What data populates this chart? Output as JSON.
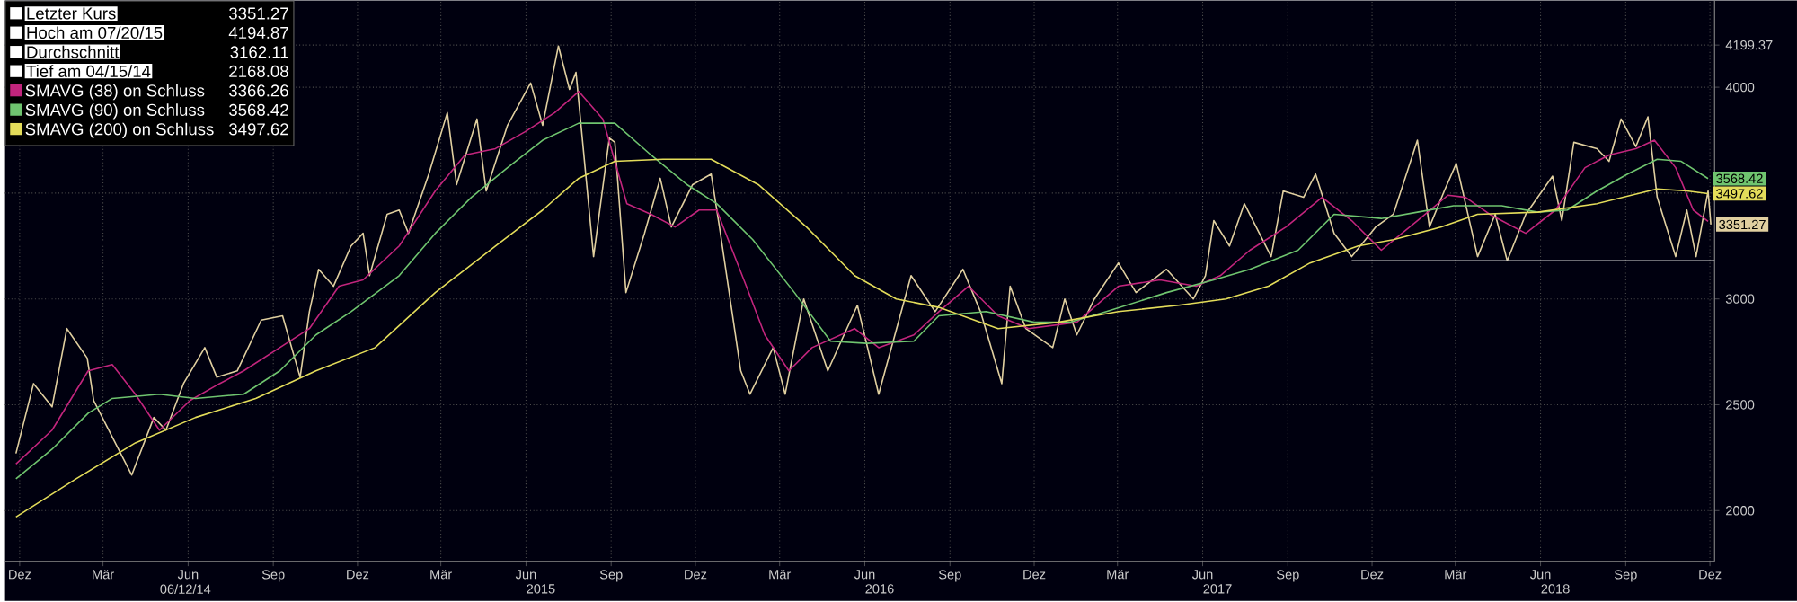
{
  "chart_data": {
    "type": "line",
    "xlim": [
      "2013-11-29",
      "2018-12-20"
    ],
    "ylim": [
      1760,
      4410
    ],
    "xticks": [
      {
        "value": "2013-12-15",
        "label": "Dez"
      },
      {
        "value": "2014-03-15",
        "label": "Mär"
      },
      {
        "value": "2014-06-15",
        "label": "Jun"
      },
      {
        "value": "2014-09-15",
        "label": "Sep"
      },
      {
        "value": "2014-12-15",
        "label": "Dez"
      },
      {
        "value": "2015-03-15",
        "label": "Mär"
      },
      {
        "value": "2015-06-15",
        "label": "Jun"
      },
      {
        "value": "2015-09-15",
        "label": "Sep"
      },
      {
        "value": "2015-12-15",
        "label": "Dez"
      },
      {
        "value": "2016-03-15",
        "label": "Mär"
      },
      {
        "value": "2016-06-15",
        "label": "Jun"
      },
      {
        "value": "2016-09-15",
        "label": "Sep"
      },
      {
        "value": "2016-12-15",
        "label": "Dez"
      },
      {
        "value": "2017-03-15",
        "label": "Mär"
      },
      {
        "value": "2017-06-15",
        "label": "Jun"
      },
      {
        "value": "2017-09-15",
        "label": "Sep"
      },
      {
        "value": "2017-12-15",
        "label": "Dez"
      },
      {
        "value": "2018-03-15",
        "label": "Mär"
      },
      {
        "value": "2018-06-15",
        "label": "Jun"
      },
      {
        "value": "2018-09-15",
        "label": "Sep"
      },
      {
        "value": "2018-12-15",
        "label": "Dez"
      }
    ],
    "x2lim": [
      "2013-11-29",
      "2018-12-20"
    ],
    "x2ticks": [
      {
        "value": "2014-06-12",
        "label": "06/12/14"
      },
      {
        "value": "2015-07-01",
        "label": "2015"
      },
      {
        "value": "2016-07-01",
        "label": "2016"
      },
      {
        "value": "2017-07-01",
        "label": "2017"
      },
      {
        "value": "2018-07-01",
        "label": "2018"
      }
    ],
    "yticks": [
      2000,
      2500,
      3000,
      {
        "value": 3500,
        "label": null
      },
      4000,
      4199.37
    ],
    "grid": true,
    "legend": "top left",
    "marker": "none",
    "line_style": "solid",
    "annotations": [
      "Letzter Kurs",
      "3351.27",
      "Hoch am 07/20/15",
      "4194.87",
      "Durchschnitt",
      "3162.11",
      "Tief am 04/15/14",
      "2168.08",
      "3366.26",
      "3568.42",
      "3497.62"
    ],
    "series": [
      {
        "color": "#e0cfa0",
        "x": [
          "2013-12-11",
          "2013-12-30",
          "2014-01-19",
          "2014-02-04",
          "2014-02-26",
          "2014-03-05",
          "2014-04-15",
          "2014-05-09",
          "2014-05-22",
          "2014-06-10",
          "2014-07-03",
          "2014-07-16",
          "2014-08-07",
          "2014-09-02",
          "2014-09-25",
          "2014-10-14",
          "2014-10-24",
          "2014-11-03",
          "2014-11-19",
          "2014-12-08",
          "2014-12-21",
          "2014-12-28",
          "2015-01-16",
          "2015-01-29",
          "2015-02-08",
          "2015-03-02",
          "2015-03-22",
          "2015-04-01",
          "2015-04-23",
          "2015-05-03",
          "2015-05-26",
          "2015-06-20",
          "2015-07-03",
          "2015-07-20",
          "2015-08-01",
          "2015-08-08",
          "2015-08-27",
          "2015-09-13",
          "2015-09-19",
          "2015-10-01",
          "2015-10-21",
          "2015-11-07",
          "2015-11-19",
          "2015-12-12",
          "2016-01-01",
          "2016-01-10",
          "2016-02-02",
          "2016-02-12",
          "2016-03-08",
          "2016-03-21",
          "2016-04-10",
          "2016-05-06",
          "2016-06-07",
          "2016-06-30",
          "2016-08-04",
          "2016-08-30",
          "2016-09-29",
          "2016-10-18",
          "2016-11-10",
          "2016-11-19",
          "2016-12-06",
          "2017-01-04",
          "2017-01-17",
          "2017-01-30",
          "2017-02-18",
          "2017-03-16",
          "2017-04-04",
          "2017-05-07",
          "2017-06-05",
          "2017-06-18",
          "2017-06-27",
          "2017-07-14",
          "2017-07-30",
          "2017-08-28",
          "2017-09-10",
          "2017-10-02",
          "2017-10-15",
          "2017-11-04",
          "2017-11-23",
          "2017-12-19",
          "2018-01-07",
          "2018-02-02",
          "2018-02-15",
          "2018-03-03",
          "2018-03-16",
          "2018-04-08",
          "2018-04-27",
          "2018-05-10",
          "2018-05-30",
          "2018-06-28",
          "2018-07-08",
          "2018-07-21",
          "2018-08-15",
          "2018-08-28",
          "2018-09-10",
          "2018-09-26",
          "2018-10-09",
          "2018-10-19",
          "2018-11-08",
          "2018-11-20",
          "2018-11-30",
          "2018-12-13",
          "2018-12-16"
        ],
        "values": [
          2270,
          2600,
          2490,
          2860,
          2720,
          2520,
          2168.08,
          2440,
          2380,
          2600,
          2770,
          2630,
          2660,
          2900,
          2920,
          2630,
          2940,
          3140,
          3060,
          3250,
          3310,
          3110,
          3400,
          3420,
          3310,
          3590,
          3880,
          3540,
          3850,
          3510,
          3820,
          4020,
          3820,
          4194.87,
          3990,
          4070,
          3200,
          3760,
          3740,
          3030,
          3310,
          3570,
          3340,
          3540,
          3590,
          3340,
          2660,
          2550,
          2770,
          2550,
          3000,
          2660,
          2970,
          2550,
          3110,
          2940,
          3140,
          2940,
          2600,
          3060,
          2860,
          2770,
          3000,
          2830,
          3000,
          3170,
          3030,
          3140,
          3000,
          3110,
          3370,
          3250,
          3450,
          3200,
          3510,
          3480,
          3590,
          3310,
          3200,
          3340,
          3400,
          3750,
          3340,
          3510,
          3640,
          3200,
          3400,
          3180,
          3400,
          3580,
          3370,
          3740,
          3710,
          3650,
          3850,
          3720,
          3860,
          3480,
          3200,
          3420,
          3200,
          3510,
          3351.27
        ],
        "value_labels": [
          null,
          null,
          null,
          null,
          null,
          null,
          null,
          null,
          null,
          null,
          null,
          null,
          null,
          null,
          null,
          null,
          null,
          null,
          null,
          null,
          null,
          null,
          null,
          null,
          null,
          null,
          null,
          null,
          null,
          null,
          null,
          null,
          null,
          null,
          null,
          null,
          null,
          null,
          null,
          null,
          null,
          null,
          null,
          null,
          null,
          null,
          null,
          null,
          null,
          null,
          null,
          null,
          null,
          null,
          null,
          null,
          null,
          null,
          null,
          null,
          null,
          null,
          null,
          null,
          null,
          null,
          null,
          null,
          null,
          null,
          null,
          null,
          null,
          null,
          null,
          null,
          null,
          null,
          null,
          null,
          null,
          null,
          null,
          null,
          null,
          null,
          null,
          null,
          null,
          null,
          null,
          null,
          null,
          null,
          null,
          null,
          null,
          null,
          null,
          null,
          null,
          null,
          "3351.27"
        ]
      },
      {
        "name": "SMAVG (38)  on Schluss",
        "color": "#c2257d",
        "x": [
          "2013-12-11",
          "2014-01-19",
          "2014-02-27",
          "2014-03-25",
          "2014-04-19",
          "2014-05-15",
          "2014-06-17",
          "2014-07-19",
          "2014-08-14",
          "2014-09-22",
          "2014-10-24",
          "2014-11-25",
          "2014-12-21",
          "2015-01-29",
          "2015-03-09",
          "2015-04-10",
          "2015-05-13",
          "2015-06-14",
          "2015-07-16",
          "2015-08-11",
          "2015-09-06",
          "2015-10-02",
          "2015-10-28",
          "2015-11-23",
          "2015-12-19",
          "2016-01-07",
          "2016-02-08",
          "2016-02-28",
          "2016-03-25",
          "2016-04-19",
          "2016-06-04",
          "2016-06-30",
          "2016-08-07",
          "2016-09-03",
          "2016-10-05",
          "2016-11-06",
          "2016-12-09",
          "2017-01-30",
          "2017-03-16",
          "2017-04-30",
          "2017-06-08",
          "2017-07-04",
          "2017-08-05",
          "2017-09-13",
          "2017-10-22",
          "2017-11-23",
          "2017-12-25",
          "2018-02-02",
          "2018-03-07",
          "2018-03-26",
          "2018-04-21",
          "2018-05-30",
          "2018-07-01",
          "2018-08-02",
          "2018-08-28",
          "2018-09-26",
          "2018-10-16",
          "2018-11-08",
          "2018-11-27",
          "2018-12-13"
        ],
        "values": [
          2220,
          2380,
          2660,
          2690,
          2550,
          2380,
          2520,
          2600,
          2660,
          2770,
          2860,
          3060,
          3090,
          3250,
          3510,
          3680,
          3710,
          3790,
          3880,
          3980,
          3850,
          3450,
          3400,
          3340,
          3420,
          3420,
          3060,
          2830,
          2660,
          2770,
          2860,
          2770,
          2830,
          2940,
          3060,
          2920,
          2860,
          2890,
          3060,
          3090,
          3060,
          3110,
          3230,
          3340,
          3480,
          3370,
          3230,
          3370,
          3490,
          3480,
          3400,
          3310,
          3420,
          3620,
          3680,
          3710,
          3750,
          3620,
          3420,
          3366.26
        ]
      },
      {
        "name": "SMAVG (90)  on Schluss",
        "color": "#6fc46f",
        "x": [
          "2013-12-11",
          "2014-01-19",
          "2014-02-27",
          "2014-03-25",
          "2014-05-15",
          "2014-06-23",
          "2014-08-14",
          "2014-09-22",
          "2014-10-31",
          "2014-12-08",
          "2015-01-29",
          "2015-03-09",
          "2015-04-17",
          "2015-05-26",
          "2015-07-03",
          "2015-08-11",
          "2015-09-19",
          "2015-10-28",
          "2015-12-06",
          "2016-01-07",
          "2016-02-15",
          "2016-03-31",
          "2016-05-09",
          "2016-06-17",
          "2016-08-07",
          "2016-09-03",
          "2016-10-24",
          "2016-12-15",
          "2017-01-23",
          "2017-03-03",
          "2017-05-07",
          "2017-06-27",
          "2017-08-05",
          "2017-09-26",
          "2017-11-04",
          "2017-12-25",
          "2018-02-02",
          "2018-03-13",
          "2018-05-04",
          "2018-06-12",
          "2018-07-14",
          "2018-08-15",
          "2018-09-17",
          "2018-10-19",
          "2018-11-14",
          "2018-12-13"
        ],
        "values": [
          2150,
          2290,
          2460,
          2530,
          2550,
          2530,
          2550,
          2660,
          2830,
          2940,
          3110,
          3310,
          3480,
          3620,
          3750,
          3830,
          3830,
          3680,
          3540,
          3450,
          3280,
          3030,
          2800,
          2790,
          2800,
          2920,
          2940,
          2890,
          2890,
          2940,
          3030,
          3090,
          3140,
          3230,
          3400,
          3380,
          3410,
          3440,
          3440,
          3410,
          3420,
          3510,
          3590,
          3660,
          3650,
          3568.42
        ],
        "value_labels": [
          null,
          null,
          null,
          null,
          null,
          null,
          null,
          null,
          null,
          null,
          null,
          null,
          null,
          null,
          null,
          null,
          null,
          null,
          null,
          null,
          null,
          null,
          null,
          null,
          null,
          null,
          null,
          null,
          null,
          null,
          null,
          null,
          null,
          null,
          null,
          null,
          null,
          null,
          null,
          null,
          null,
          null,
          null,
          null,
          null,
          "3568.42"
        ]
      },
      {
        "name": "SMAVG (200)  on Schluss",
        "color": "#e3dc5a",
        "x": [
          "2013-12-11",
          "2014-02-14",
          "2014-04-19",
          "2014-06-23",
          "2014-08-27",
          "2014-10-31",
          "2015-01-03",
          "2015-03-09",
          "2015-05-13",
          "2015-07-03",
          "2015-08-11",
          "2015-09-19",
          "2015-11-10",
          "2016-01-01",
          "2016-02-21",
          "2016-04-13",
          "2016-06-04",
          "2016-07-19",
          "2016-09-03",
          "2016-11-06",
          "2017-01-10",
          "2017-03-16",
          "2017-05-20",
          "2017-07-10",
          "2017-08-25",
          "2017-10-09",
          "2017-11-30",
          "2018-01-07",
          "2018-02-28",
          "2018-04-08",
          "2018-06-12",
          "2018-08-15",
          "2018-10-19",
          "2018-11-20",
          "2018-12-13"
        ],
        "values": [
          1970,
          2150,
          2320,
          2440,
          2530,
          2660,
          2770,
          3030,
          3250,
          3420,
          3570,
          3650,
          3660,
          3660,
          3540,
          3340,
          3110,
          3000,
          2960,
          2860,
          2890,
          2940,
          2970,
          3000,
          3060,
          3170,
          3250,
          3280,
          3340,
          3400,
          3410,
          3450,
          3520,
          3510,
          3497.62
        ],
        "value_labels": [
          null,
          null,
          null,
          null,
          null,
          null,
          null,
          null,
          null,
          null,
          null,
          null,
          null,
          null,
          null,
          null,
          null,
          null,
          null,
          null,
          null,
          null,
          null,
          null,
          null,
          null,
          null,
          null,
          null,
          null,
          null,
          null,
          null,
          null,
          "3497.62"
        ]
      },
      {
        "color": "#d8d8d8",
        "x": [
          "2017-11-23",
          "2018-12-20"
        ],
        "values": [
          3180,
          3180
        ]
      }
    ]
  }
}
